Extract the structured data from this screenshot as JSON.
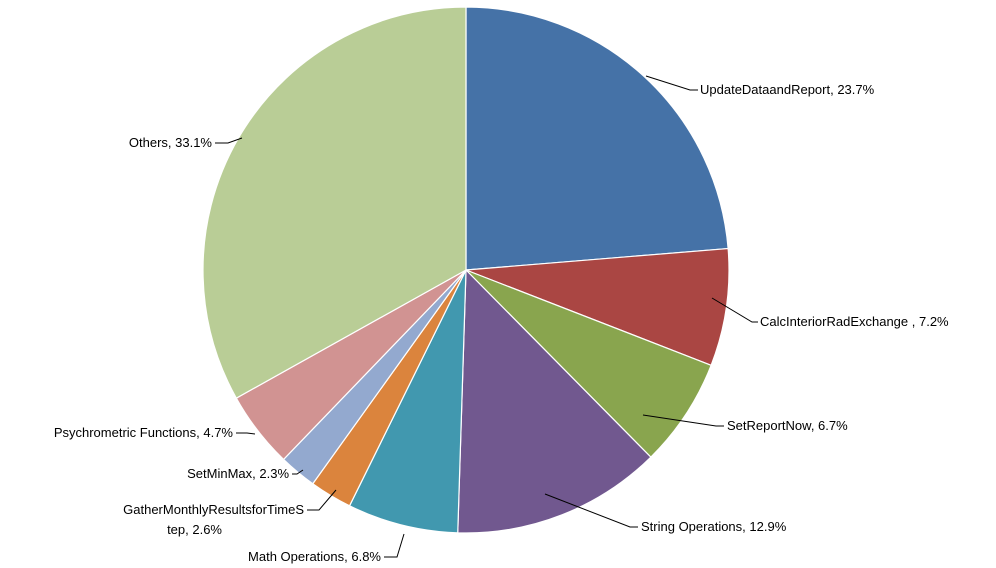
{
  "chart_data": {
    "type": "pie",
    "title": "",
    "slices": [
      {
        "label": "UpdateDataandReport",
        "value": 23.7,
        "text": "UpdateDataandReport,  23.7%",
        "color": "#4572A7"
      },
      {
        "label": "CalcInteriorRadExchange",
        "value": 7.2,
        "text": "CalcInteriorRadExchange , 7.2%",
        "color": "#AA4643"
      },
      {
        "label": "SetReportNow",
        "value": 6.7,
        "text": "SetReportNow,  6.7%",
        "color": "#89A54E"
      },
      {
        "label": "String Operations",
        "value": 12.9,
        "text": "String Operations, 12.9%",
        "color": "#71588F"
      },
      {
        "label": "Math Operations",
        "value": 6.8,
        "text": "Math Operations,  6.8%",
        "color": "#4198AF"
      },
      {
        "label": "GatherMonthlyResultsforTimeStep",
        "value": 2.6,
        "text": [
          "GatherMonthlyResultsforTimeS",
          "tep, 2.6%"
        ],
        "color": "#DB843D"
      },
      {
        "label": "SetMinMax",
        "value": 2.3,
        "text": "SetMinMax,  2.3%",
        "color": "#93A9CF"
      },
      {
        "label": "Psychrometric Functions",
        "value": 4.7,
        "text": "Psychrometric Functions, 4.7%",
        "color": "#D19392"
      },
      {
        "label": "Others",
        "value": 33.1,
        "text": "Others, 33.1%",
        "color": "#B9CD96"
      }
    ],
    "start_angle": "12 o'clock",
    "direction": "clockwise",
    "legend": "none"
  }
}
